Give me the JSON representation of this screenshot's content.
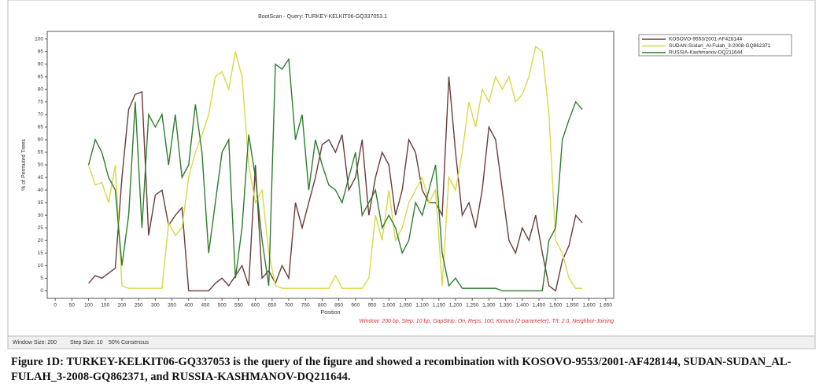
{
  "chart_data": {
    "type": "line",
    "title": "BootScan - Query: TURKEY-KELKIT06-GQ337053.1",
    "y_label": "% of Permuted Trees",
    "x_label": "Position",
    "note": "Window: 200 bp, Step: 10 bp, GapStrip: On, Reps: 100, Kimura (2-parameter), T/t: 2.0, Neighbor-Joining",
    "x": [
      100,
      120,
      140,
      160,
      180,
      200,
      220,
      240,
      260,
      280,
      300,
      320,
      340,
      360,
      380,
      400,
      420,
      440,
      460,
      480,
      500,
      520,
      540,
      560,
      580,
      600,
      620,
      640,
      660,
      680,
      700,
      720,
      740,
      760,
      780,
      800,
      820,
      840,
      860,
      880,
      900,
      920,
      940,
      960,
      980,
      1000,
      1020,
      1040,
      1060,
      1080,
      1100,
      1120,
      1140,
      1160,
      1180,
      1200,
      1220,
      1240,
      1260,
      1280,
      1300,
      1320,
      1340,
      1360,
      1380,
      1400,
      1420,
      1440,
      1460,
      1480,
      1500,
      1520,
      1540,
      1560,
      1580
    ],
    "series": [
      {
        "name": "KOSOVO-9553/2001-AF428144",
        "color": "#6b3a3a",
        "values": [
          3,
          6,
          5,
          7,
          9,
          45,
          72,
          78,
          79,
          22,
          38,
          40,
          26,
          30,
          33,
          0,
          0,
          0,
          0,
          3,
          5,
          2,
          6,
          10,
          2,
          50,
          5,
          8,
          3,
          10,
          5,
          35,
          25,
          35,
          45,
          58,
          60,
          55,
          62,
          40,
          45,
          60,
          30,
          45,
          55,
          50,
          30,
          40,
          60,
          55,
          40,
          35,
          35,
          30,
          85,
          55,
          30,
          35,
          25,
          40,
          65,
          60,
          40,
          20,
          15,
          25,
          20,
          30,
          15,
          2,
          0,
          12,
          18,
          30,
          27
        ]
      },
      {
        "name": "SUDAN-Sudan_Al-Fulah_3-2008-GQ862371",
        "color": "#d8d848",
        "values": [
          50,
          42,
          43,
          35,
          50,
          2,
          1,
          1,
          1,
          1,
          1,
          1,
          27,
          22,
          25,
          45,
          55,
          62,
          70,
          85,
          87,
          80,
          95,
          85,
          50,
          35,
          40,
          15,
          2,
          1,
          1,
          1,
          1,
          1,
          1,
          1,
          1,
          6,
          1,
          1,
          1,
          1,
          5,
          30,
          20,
          40,
          20,
          25,
          35,
          40,
          45,
          35,
          40,
          2,
          45,
          40,
          55,
          75,
          65,
          80,
          75,
          85,
          80,
          85,
          75,
          78,
          85,
          97,
          95,
          70,
          20,
          15,
          5,
          1,
          1
        ]
      },
      {
        "name": "RUSSIA-Kashmanov-DQ211644",
        "color": "#2e7d2e",
        "values": [
          50,
          60,
          55,
          45,
          40,
          10,
          30,
          75,
          25,
          70,
          65,
          70,
          50,
          70,
          45,
          50,
          74,
          55,
          15,
          35,
          55,
          60,
          5,
          25,
          62,
          45,
          20,
          2,
          90,
          88,
          92,
          60,
          70,
          40,
          60,
          50,
          42,
          40,
          35,
          45,
          55,
          30,
          35,
          40,
          25,
          30,
          25,
          15,
          20,
          35,
          30,
          40,
          50,
          15,
          2,
          5,
          1,
          1,
          1,
          1,
          1,
          1,
          0,
          0,
          0,
          0,
          0,
          0,
          0,
          20,
          25,
          60,
          68,
          75,
          72
        ]
      }
    ],
    "xlim": [
      -24,
      1674
    ],
    "ylim": [
      -3,
      103
    ],
    "xticks": [
      0,
      50,
      100,
      150,
      200,
      250,
      300,
      350,
      400,
      450,
      500,
      550,
      600,
      650,
      700,
      750,
      800,
      850,
      900,
      950,
      {
        "value": 1000,
        "label": "1,000"
      },
      {
        "value": 1050,
        "label": "1,050"
      },
      {
        "value": 1100,
        "label": "1,100"
      },
      {
        "value": 1150,
        "label": "1,150"
      },
      {
        "value": 1200,
        "label": "1,200"
      },
      {
        "value": 1250,
        "label": "1,250"
      },
      {
        "value": 1300,
        "label": "1,300"
      },
      {
        "value": 1350,
        "label": "1,350"
      },
      {
        "value": 1400,
        "label": "1,400"
      },
      {
        "value": 1450,
        "label": "1,450"
      },
      {
        "value": 1500,
        "label": "1,500"
      },
      {
        "value": 1550,
        "label": "1,550"
      },
      {
        "value": 1600,
        "label": "1,600"
      },
      {
        "value": 1650,
        "label": "1,650"
      }
    ],
    "yticks": [
      0,
      5,
      10,
      15,
      20,
      25,
      30,
      35,
      40,
      45,
      50,
      55,
      60,
      65,
      70,
      75,
      80,
      85,
      90,
      95,
      100
    ],
    "legend": "outside-right"
  },
  "status_bar": [
    "Window Size: 200",
    "Step Size: 10",
    "50% Consensus"
  ],
  "caption": "Figure 1D: TURKEY-KELKIT06-GQ337053 is the query of the figure and showed a recombination with KOSOVO-9553/2001-AF428144, SUDAN-SUDAN_AL-FULAH_3-2008-GQ862371, and RUSSIA-KASHMANOV-DQ211644."
}
